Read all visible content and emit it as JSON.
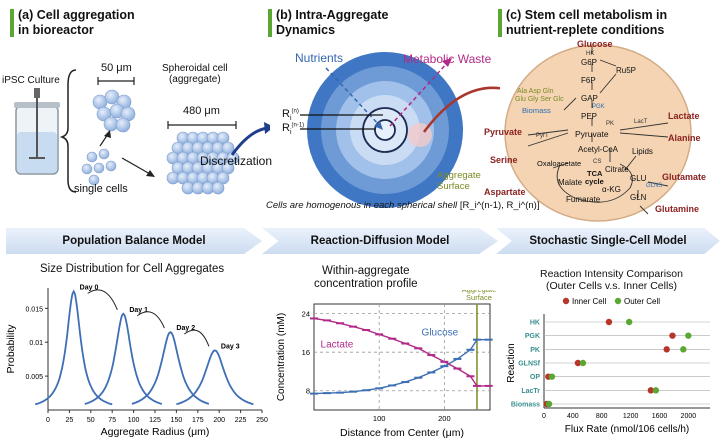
{
  "panel_a": {
    "title_line1": "(a) Cell aggregation",
    "title_line2": "in bioreactor",
    "ipsc_label": "iPSC Culture",
    "size_small": "50 μm",
    "spheroid_line1": "Spheroidal cell",
    "spheroid_line2": "(aggregate)",
    "size_large": "480 μm",
    "single_cells": "single cells",
    "discretization": "Discretization"
  },
  "panel_b": {
    "title_line1": "(b) Intra-Aggregate",
    "title_line2": "Dynamics",
    "nutrients": "Nutrients",
    "waste": "Metabolic Waste",
    "r_outer": "R",
    "r_outer_sub": "i",
    "r_outer_sup": "(n)",
    "r_inner": "R",
    "r_inner_sub": "i",
    "r_inner_sup": "(n-1)",
    "surface_line1": "Aggregate",
    "surface_line2": "Surface",
    "caption": "Cells are homogenous in each spherical shell",
    "caption_bracket": "[R_i^(n-1), R_i^(n)]"
  },
  "panel_c": {
    "title_line1": "(c) Stem cell metabolism in",
    "title_line2": "nutrient-replete conditions",
    "metabolites": {
      "glucose": "Glucose",
      "hk": "HK",
      "g6p": "G6P",
      "ru5p": "Ru5P",
      "f6p": "F6P",
      "gap": "GAP",
      "pgk": "PGK",
      "pep": "PEP",
      "pk": "PK",
      "pyruvate_in": "Pyruvate",
      "aa_line1": "Ala Asp Gln",
      "aa_line2": "Glu Gly Ser Glc",
      "biomass": "Biomass",
      "pyruvate_ext": "Pyruvate",
      "serine": "Serine",
      "pyrt": "PyrT",
      "lactr": "LacT",
      "lactate": "Lactate",
      "alanine": "Alanine",
      "acetyl": "Acetyl-CoA",
      "aspartate": "Aspartate",
      "oxalo": "Oxaloacetate",
      "cs": "CS",
      "citrate": "Citrate",
      "lipids": "Lipids",
      "tca_line1": "TCA",
      "tca_line2": "cycle",
      "malate": "Malate",
      "akg": "α-KG",
      "glu": "GLU",
      "glns": "GLNS",
      "gln": "GLN",
      "fumarate": "Fumarate",
      "glutamate": "Glutamate",
      "glutamine": "Glutamine"
    }
  },
  "bands": {
    "band1": "Population Balance Model",
    "band2": "Reaction-Diffusion Model",
    "band3": "Stochastic Single-Cell Model"
  },
  "chart_data": [
    {
      "type": "line",
      "title": "Size Distribution for Cell Aggregates",
      "xlabel": "Aggregate Radius (μm)",
      "ylabel": "Probability",
      "xlim": [
        0,
        250
      ],
      "ylim": [
        0,
        0.018
      ],
      "xticks": [
        0,
        25,
        50,
        75,
        100,
        125,
        150,
        175,
        200,
        225,
        250
      ],
      "yticks": [
        0.005,
        0.01,
        0.015
      ],
      "series": [
        {
          "name": "Day 0",
          "peak_x": 30,
          "peak_y": 0.0175
        },
        {
          "name": "Day 1",
          "peak_x": 88,
          "peak_y": 0.0142
        },
        {
          "name": "Day 2",
          "peak_x": 143,
          "peak_y": 0.0115
        },
        {
          "name": "Day 3",
          "peak_x": 195,
          "peak_y": 0.0088
        }
      ]
    },
    {
      "type": "line",
      "title_line1": "Within-aggregate",
      "title_line2": "concentration profile",
      "xlabel": "Distance from Center (μm)",
      "ylabel": "Concentration (mM)",
      "xlim": [
        0,
        270
      ],
      "ylim": [
        4,
        26
      ],
      "xticks": [
        100,
        200
      ],
      "yticks": [
        8,
        16,
        24
      ],
      "surface_x": 250,
      "surface_label_line1": "Aggregate",
      "surface_label_line2": "Surface",
      "series": [
        {
          "name": "Glucose",
          "x": [
            0,
            20,
            40,
            60,
            80,
            100,
            120,
            140,
            160,
            180,
            200,
            220,
            240,
            250,
            268
          ],
          "y": [
            7.4,
            7.5,
            7.6,
            7.8,
            8.1,
            8.5,
            9.1,
            9.8,
            10.7,
            11.8,
            13.1,
            14.6,
            16.5,
            18.6,
            18.6
          ]
        },
        {
          "name": "Lactate",
          "x": [
            0,
            20,
            40,
            60,
            80,
            100,
            120,
            140,
            160,
            180,
            200,
            220,
            240,
            250,
            268
          ],
          "y": [
            23.0,
            22.6,
            22.0,
            21.3,
            20.6,
            19.7,
            18.8,
            17.8,
            16.8,
            15.4,
            14.0,
            12.6,
            11.0,
            9.0,
            9.0
          ]
        }
      ]
    },
    {
      "type": "scatter",
      "title_line1": "Reaction Intensity Comparison",
      "title_line2": "(Outer Cells v.s. Inner Cells)",
      "xlabel": "Flux Rate (nmol/106 cells/h)",
      "ylabel": "Reaction",
      "xlim": [
        0,
        2300
      ],
      "xticks": [
        0,
        400,
        800,
        1200,
        1600,
        2000
      ],
      "categories": [
        "HK",
        "PGK",
        "PK",
        "GLNSf",
        "OP",
        "LacTr",
        "Biomass"
      ],
      "series": [
        {
          "name": "Inner Cell",
          "values": [
            900,
            1780,
            1700,
            470,
            60,
            1480,
            40
          ]
        },
        {
          "name": "Outer Cell",
          "values": [
            1180,
            2000,
            1930,
            540,
            110,
            1550,
            70
          ]
        }
      ]
    }
  ]
}
